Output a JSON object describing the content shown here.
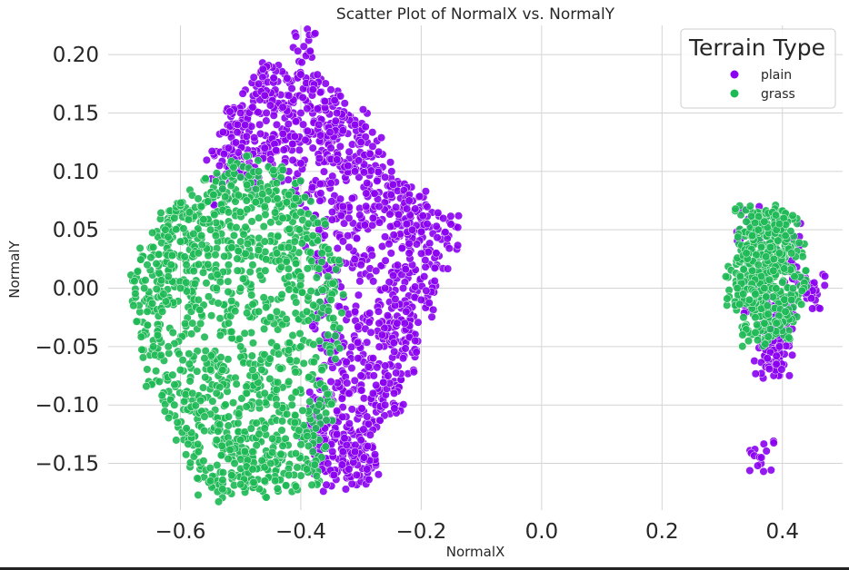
{
  "chart_data": {
    "type": "scatter",
    "title": "Scatter Plot of NormalX vs. NormalY",
    "xlabel": "NormalX",
    "ylabel": "NormalY",
    "xlim": [
      -0.72,
      0.5
    ],
    "ylim": [
      -0.19,
      0.225
    ],
    "x_ticks": [
      -0.6,
      -0.4,
      -0.2,
      0.0,
      0.2,
      0.4
    ],
    "x_tick_labels": [
      "−0.6",
      "−0.4",
      "−0.2",
      "0.0",
      "0.2",
      "0.4"
    ],
    "y_ticks": [
      0.2,
      0.15,
      0.1,
      0.05,
      0.0,
      -0.05,
      -0.1,
      -0.15
    ],
    "y_tick_labels": [
      "0.20",
      "0.15",
      "0.10",
      "0.05",
      "0.00",
      "−0.05",
      "−0.10",
      "−0.15"
    ],
    "grid": true,
    "legend": {
      "title": "Terrain Type",
      "placement": "top-right"
    },
    "series": [
      {
        "name": "plain",
        "color": "#8a00f0",
        "points": [
          [
            -0.395,
            0.207
          ],
          [
            -0.4,
            0.183
          ],
          [
            -0.42,
            0.165
          ],
          [
            -0.445,
            0.18
          ],
          [
            -0.47,
            0.175
          ],
          [
            -0.48,
            0.155
          ],
          [
            -0.505,
            0.14
          ],
          [
            -0.52,
            0.12
          ],
          [
            -0.535,
            0.105
          ],
          [
            -0.53,
            0.085
          ],
          [
            -0.38,
            0.17
          ],
          [
            -0.36,
            0.16
          ],
          [
            -0.34,
            0.15
          ],
          [
            -0.33,
            0.135
          ],
          [
            -0.3,
            0.125
          ],
          [
            -0.285,
            0.115
          ],
          [
            -0.26,
            0.095
          ],
          [
            -0.25,
            0.08
          ],
          [
            -0.22,
            0.075
          ],
          [
            -0.21,
            0.068
          ],
          [
            -0.19,
            0.055
          ],
          [
            -0.16,
            0.048
          ],
          [
            -0.175,
            0.03
          ],
          [
            -0.195,
            0.01
          ],
          [
            -0.2,
            -0.01
          ],
          [
            -0.21,
            -0.045
          ],
          [
            -0.23,
            -0.06
          ],
          [
            -0.245,
            -0.09
          ],
          [
            -0.26,
            -0.1
          ],
          [
            -0.29,
            -0.11
          ],
          [
            -0.3,
            -0.13
          ],
          [
            -0.31,
            -0.14
          ],
          [
            -0.32,
            -0.155
          ],
          [
            -0.345,
            -0.16
          ],
          [
            -0.365,
            -0.155
          ],
          [
            -0.29,
            -0.155
          ],
          [
            -0.295,
            -0.145
          ],
          [
            -0.34,
            -0.125
          ],
          [
            -0.36,
            -0.12
          ],
          [
            -0.37,
            -0.1
          ],
          [
            -0.35,
            -0.08
          ],
          [
            -0.33,
            -0.05
          ],
          [
            -0.31,
            -0.02
          ],
          [
            -0.3,
            0.02
          ],
          [
            -0.32,
            0.06
          ],
          [
            -0.35,
            0.09
          ],
          [
            -0.38,
            0.12
          ],
          [
            -0.41,
            0.13
          ],
          [
            -0.44,
            0.14
          ],
          [
            -0.46,
            0.12
          ],
          [
            -0.42,
            0.1
          ],
          [
            -0.39,
            0.08
          ],
          [
            -0.37,
            0.05
          ],
          [
            -0.36,
            0.02
          ],
          [
            -0.355,
            -0.01
          ],
          [
            -0.36,
            -0.04
          ],
          [
            -0.25,
            0.03
          ],
          [
            -0.26,
            0.0
          ],
          [
            -0.27,
            -0.03
          ],
          [
            -0.28,
            -0.06
          ],
          [
            -0.24,
            -0.03
          ],
          [
            -0.23,
            0.0
          ],
          [
            -0.22,
            0.03
          ],
          [
            -0.28,
            0.06
          ],
          [
            -0.29,
            0.09
          ],
          [
            -0.31,
            0.1
          ],
          [
            -0.27,
            0.07
          ],
          [
            -0.33,
            0.07
          ],
          [
            -0.4,
            0.15
          ],
          [
            -0.43,
            0.155
          ],
          [
            -0.46,
            0.165
          ],
          [
            -0.5,
            0.15
          ],
          [
            -0.49,
            0.13
          ],
          [
            -0.51,
            0.11
          ],
          [
            -0.48,
            0.1
          ],
          [
            -0.45,
            0.11
          ],
          [
            -0.37,
            0.14
          ],
          [
            -0.35,
            0.12
          ],
          [
            -0.31,
            0.14
          ],
          [
            -0.34,
            0.11
          ],
          [
            -0.32,
            0.035
          ],
          [
            -0.28,
            -0.09
          ],
          [
            -0.32,
            -0.09
          ],
          [
            -0.34,
            -0.105
          ],
          [
            -0.38,
            -0.13
          ],
          [
            -0.33,
            -0.14
          ],
          [
            -0.305,
            -0.06
          ],
          [
            -0.265,
            -0.04
          ],
          [
            -0.255,
            -0.075
          ],
          [
            -0.225,
            -0.02
          ],
          [
            -0.215,
            0.05
          ],
          [
            -0.24,
            0.055
          ],
          [
            0.365,
            -0.145
          ],
          [
            0.45,
            -0.002
          ],
          [
            0.44,
            -0.004
          ],
          [
            0.425,
            0.012
          ],
          [
            0.395,
            -0.02
          ],
          [
            0.39,
            -0.035
          ],
          [
            0.385,
            -0.045
          ],
          [
            0.38,
            -0.055
          ],
          [
            0.39,
            -0.065
          ],
          [
            0.375,
            -0.06
          ],
          [
            0.395,
            -0.05
          ],
          [
            0.4,
            -0.03
          ],
          [
            0.385,
            -0.025
          ],
          [
            0.375,
            -0.04
          ],
          [
            0.38,
            -0.035
          ],
          [
            0.39,
            -0.058
          ],
          [
            0.41,
            0.045
          ],
          [
            0.345,
            0.055
          ],
          [
            0.355,
            -0.01
          ]
        ]
      },
      {
        "name": "grass",
        "color": "#1db954",
        "points": [
          [
            -0.53,
            0.085
          ],
          [
            -0.5,
            0.095
          ],
          [
            -0.47,
            0.1
          ],
          [
            -0.44,
            0.09
          ],
          [
            -0.42,
            0.08
          ],
          [
            -0.4,
            0.065
          ],
          [
            -0.38,
            0.045
          ],
          [
            -0.365,
            0.03
          ],
          [
            -0.355,
            0.01
          ],
          [
            -0.35,
            -0.01
          ],
          [
            -0.355,
            -0.04
          ],
          [
            -0.365,
            -0.07
          ],
          [
            -0.37,
            -0.1
          ],
          [
            -0.375,
            -0.12
          ],
          [
            -0.38,
            -0.14
          ],
          [
            -0.39,
            -0.155
          ],
          [
            -0.42,
            -0.16
          ],
          [
            -0.46,
            -0.165
          ],
          [
            -0.5,
            -0.168
          ],
          [
            -0.53,
            -0.172
          ],
          [
            -0.55,
            -0.165
          ],
          [
            -0.57,
            -0.14
          ],
          [
            -0.59,
            -0.12
          ],
          [
            -0.61,
            -0.1
          ],
          [
            -0.635,
            -0.08
          ],
          [
            -0.645,
            -0.05
          ],
          [
            -0.655,
            -0.02
          ],
          [
            -0.66,
            0.0
          ],
          [
            -0.655,
            0.02
          ],
          [
            -0.645,
            0.035
          ],
          [
            -0.625,
            0.05
          ],
          [
            -0.61,
            0.06
          ],
          [
            -0.585,
            0.065
          ],
          [
            -0.565,
            0.07
          ],
          [
            -0.545,
            0.08
          ],
          [
            -0.6,
            0.0
          ],
          [
            -0.58,
            -0.03
          ],
          [
            -0.56,
            -0.06
          ],
          [
            -0.54,
            -0.09
          ],
          [
            -0.52,
            -0.11
          ],
          [
            -0.5,
            -0.13
          ],
          [
            -0.48,
            -0.14
          ],
          [
            -0.46,
            -0.12
          ],
          [
            -0.44,
            -0.1
          ],
          [
            -0.42,
            -0.08
          ],
          [
            -0.4,
            -0.05
          ],
          [
            -0.39,
            -0.02
          ],
          [
            -0.4,
            0.01
          ],
          [
            -0.41,
            0.04
          ],
          [
            -0.43,
            0.06
          ],
          [
            -0.46,
            0.07
          ],
          [
            -0.49,
            0.075
          ],
          [
            -0.52,
            0.065
          ],
          [
            -0.55,
            0.05
          ],
          [
            -0.57,
            0.03
          ],
          [
            -0.59,
            0.02
          ],
          [
            -0.62,
            0.01
          ],
          [
            -0.63,
            -0.02
          ],
          [
            -0.62,
            -0.05
          ],
          [
            -0.6,
            -0.07
          ],
          [
            -0.58,
            -0.09
          ],
          [
            -0.56,
            -0.11
          ],
          [
            -0.54,
            -0.13
          ],
          [
            -0.51,
            -0.15
          ],
          [
            -0.48,
            -0.155
          ],
          [
            -0.45,
            -0.15
          ],
          [
            -0.43,
            -0.135
          ],
          [
            -0.41,
            -0.115
          ],
          [
            -0.5,
            0.0
          ],
          [
            -0.48,
            0.02
          ],
          [
            -0.46,
            0.04
          ],
          [
            -0.5,
            0.04
          ],
          [
            -0.52,
            0.02
          ],
          [
            -0.54,
            0.0
          ],
          [
            -0.52,
            -0.03
          ],
          [
            -0.5,
            -0.05
          ],
          [
            -0.48,
            -0.07
          ],
          [
            -0.46,
            -0.09
          ],
          [
            -0.44,
            -0.05
          ],
          [
            -0.44,
            -0.02
          ],
          [
            -0.42,
            0.01
          ],
          [
            -0.44,
            0.03
          ],
          [
            -0.47,
            -0.02
          ],
          [
            -0.49,
            -0.09
          ],
          [
            -0.53,
            -0.07
          ],
          [
            -0.57,
            -0.01
          ],
          [
            -0.565,
            0.045
          ],
          [
            -0.6,
            0.04
          ],
          [
            0.33,
            0.01
          ],
          [
            0.34,
            0.03
          ],
          [
            0.35,
            0.045
          ],
          [
            0.36,
            0.05
          ],
          [
            0.375,
            0.052
          ],
          [
            0.39,
            0.05
          ],
          [
            0.405,
            0.045
          ],
          [
            0.415,
            0.03
          ],
          [
            0.42,
            0.01
          ],
          [
            0.415,
            -0.01
          ],
          [
            0.405,
            -0.02
          ],
          [
            0.39,
            -0.03
          ],
          [
            0.38,
            -0.035
          ],
          [
            0.37,
            -0.03
          ],
          [
            0.355,
            -0.025
          ],
          [
            0.345,
            -0.01
          ],
          [
            0.335,
            -0.005
          ],
          [
            0.325,
            0.0
          ],
          [
            0.36,
            0.02
          ],
          [
            0.37,
            0.0
          ],
          [
            0.385,
            0.015
          ],
          [
            0.395,
            0.03
          ],
          [
            0.38,
            0.035
          ],
          [
            0.365,
            0.035
          ],
          [
            0.35,
            0.015
          ],
          [
            0.4,
            0.005
          ],
          [
            0.355,
            -0.005
          ],
          [
            0.375,
            -0.015
          ],
          [
            0.34,
            0.057
          ],
          [
            0.37,
            0.057
          ],
          [
            0.395,
            0.055
          ],
          [
            0.355,
            -0.038
          ]
        ]
      }
    ]
  }
}
